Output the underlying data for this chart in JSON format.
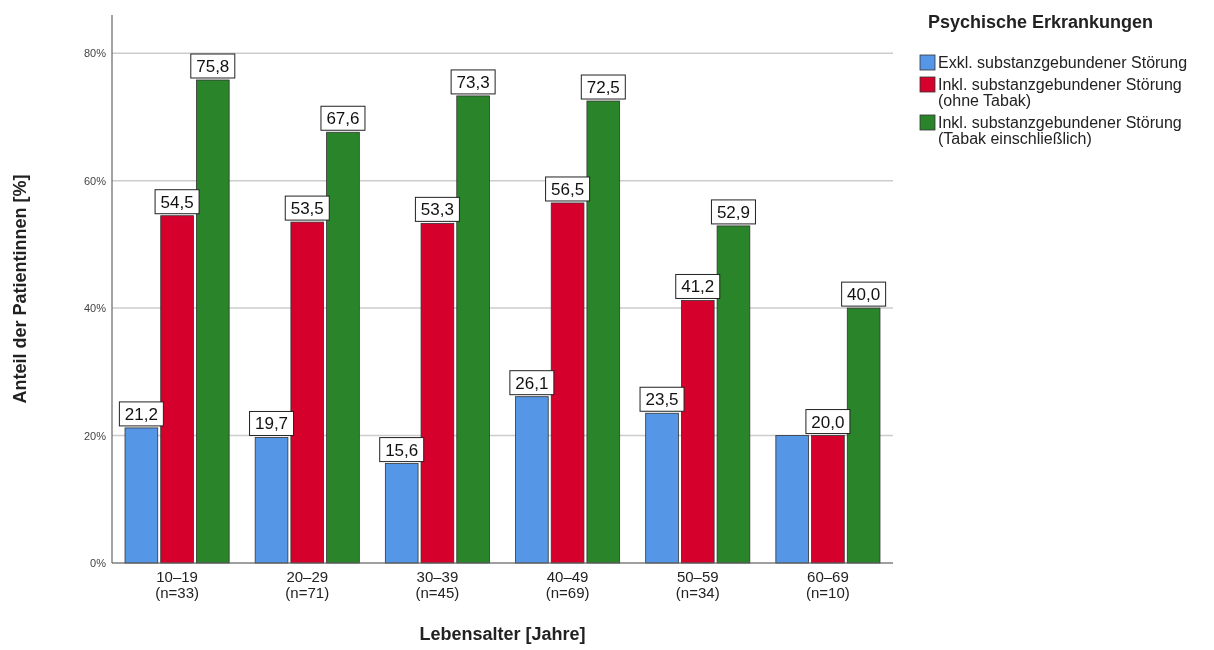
{
  "chart_data": {
    "type": "bar",
    "xlabel": "Lebensalter [Jahre]",
    "ylabel": "Anteil der Patientinnen [%]",
    "legend_title": "Psychische Erkrankungen",
    "categories": [
      "10–19\n(n=33)",
      "20–29\n(n=71)",
      "30–39\n(n=45)",
      "40–49\n(n=69)",
      "50–59\n(n=34)",
      "60–69\n(n=10)"
    ],
    "series": [
      {
        "name": "Exkl. substanzgebundener Störung",
        "color": "#5596e6",
        "values": [
          21.2,
          19.7,
          15.6,
          26.1,
          23.5,
          20.0
        ],
        "value_labels": [
          "21,2",
          "19,7",
          "15,6",
          "26,1",
          "23,5",
          null
        ]
      },
      {
        "name": "Inkl. substanzgebundener Störung\n(ohne Tabak)",
        "color": "#d6002d",
        "values": [
          54.5,
          53.5,
          53.3,
          56.5,
          41.2,
          20.0
        ],
        "value_labels": [
          "54,5",
          "53,5",
          "53,3",
          "56,5",
          "41,2",
          "20,0"
        ]
      },
      {
        "name": "Inkl. substanzgebundener Störung\n(Tabak einschließlich)",
        "color": "#2a852a",
        "values": [
          75.8,
          67.6,
          73.3,
          72.5,
          52.9,
          40.0
        ],
        "value_labels": [
          "75,8",
          "67,6",
          "73,3",
          "72,5",
          "52,9",
          "40,0"
        ]
      }
    ],
    "ylim": [
      0,
      86
    ],
    "yticks": [
      {
        "value": 0,
        "label": "0%"
      },
      {
        "value": 20,
        "label": "20%"
      },
      {
        "value": 40,
        "label": "40%"
      },
      {
        "value": 60,
        "label": "60%"
      },
      {
        "value": 80,
        "label": "80%"
      }
    ],
    "grid": "y",
    "legend": "top right"
  }
}
